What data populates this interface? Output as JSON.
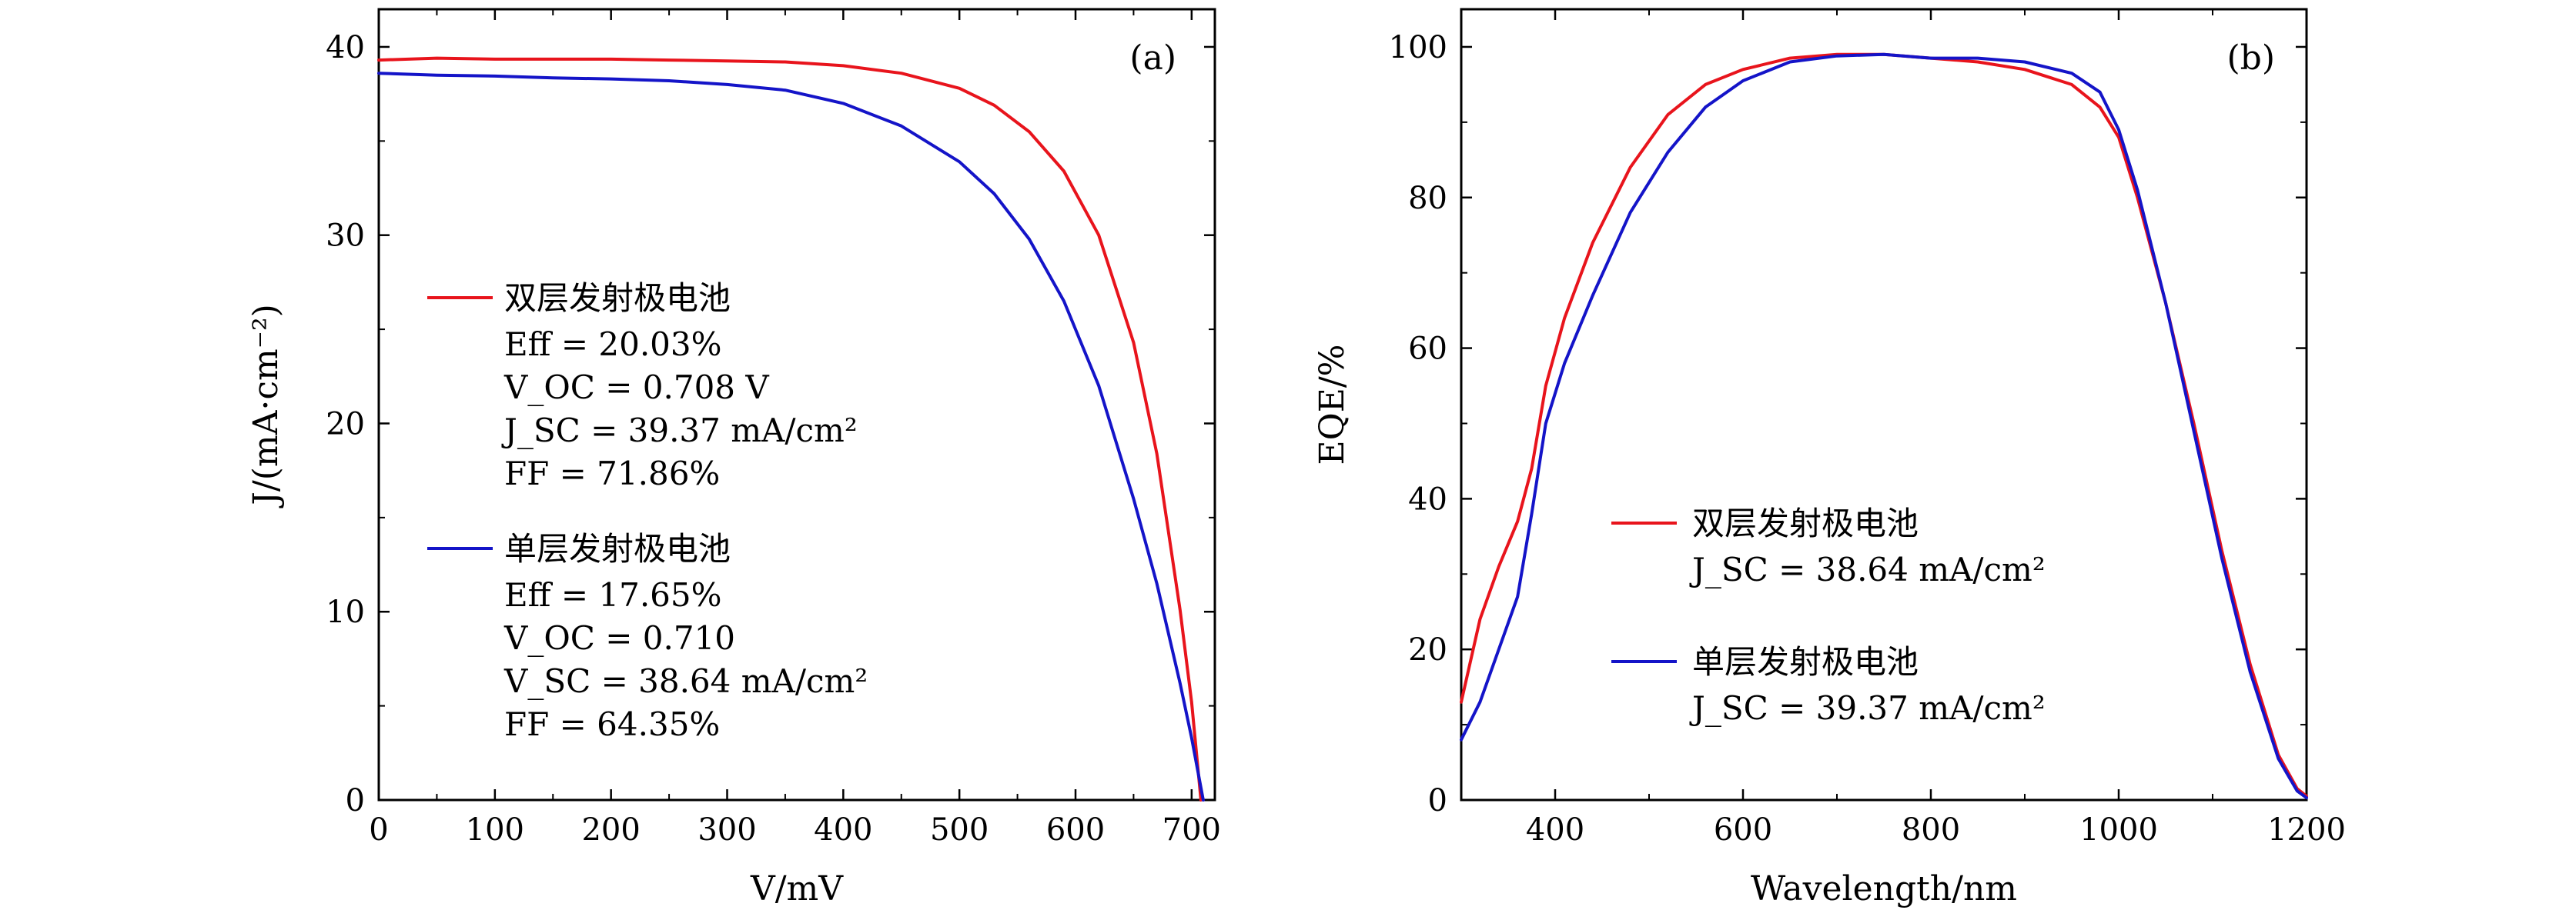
{
  "chart_data": [
    {
      "type": "line",
      "panel_label": "(a)",
      "xlabel": "V/mV",
      "ylabel": "J/(mA·cm⁻²)",
      "xlim": [
        0,
        720
      ],
      "ylim": [
        0,
        42
      ],
      "xticks": [
        0,
        100,
        200,
        300,
        400,
        500,
        600,
        700
      ],
      "yticks": [
        0,
        10,
        20,
        30,
        40
      ],
      "grid": false,
      "legend_position": "center-left",
      "series": [
        {
          "name": "双层发射极电池",
          "color": "#e8141c",
          "legend_lines": [
            "Eff = 20.03%",
            "V_OC = 0.708 V",
            "J_SC = 39.37 mA/cm²",
            "FF = 71.86%"
          ],
          "x": [
            0,
            50,
            100,
            150,
            200,
            250,
            300,
            350,
            400,
            450,
            500,
            530,
            560,
            590,
            620,
            650,
            670,
            690,
            700,
            708
          ],
          "y": [
            39.3,
            39.4,
            39.35,
            39.35,
            39.35,
            39.3,
            39.25,
            39.2,
            39.0,
            38.6,
            37.8,
            36.9,
            35.5,
            33.4,
            30.0,
            24.3,
            18.4,
            10.1,
            5.2,
            0
          ]
        },
        {
          "name": "单层发射极电池",
          "color": "#1414c8",
          "legend_lines": [
            "Eff = 17.65%",
            "V_OC = 0.710",
            "V_SC = 38.64 mA/cm²",
            "FF = 64.35%"
          ],
          "x": [
            0,
            50,
            100,
            150,
            200,
            250,
            300,
            350,
            400,
            450,
            500,
            530,
            560,
            590,
            620,
            650,
            670,
            690,
            700,
            710
          ],
          "y": [
            38.6,
            38.5,
            38.45,
            38.35,
            38.3,
            38.2,
            38.0,
            37.7,
            37.0,
            35.8,
            33.9,
            32.2,
            29.8,
            26.5,
            22.0,
            16.0,
            11.5,
            6.2,
            3.3,
            0
          ]
        }
      ]
    },
    {
      "type": "line",
      "panel_label": "(b)",
      "xlabel": "Wavelength/nm",
      "ylabel": "EQE/%",
      "xlim": [
        300,
        1200
      ],
      "ylim": [
        0,
        105
      ],
      "xticks": [
        400,
        600,
        800,
        1000,
        1200
      ],
      "yticks": [
        0,
        20,
        40,
        60,
        80,
        100
      ],
      "grid": false,
      "legend_position": "center-right",
      "series": [
        {
          "name": "双层发射极电池",
          "color": "#e8141c",
          "legend_lines": [
            "J_SC = 38.64 mA/cm²"
          ],
          "x": [
            300,
            320,
            340,
            360,
            375,
            390,
            410,
            440,
            480,
            520,
            560,
            600,
            650,
            700,
            750,
            800,
            850,
            900,
            950,
            980,
            1000,
            1020,
            1050,
            1080,
            1110,
            1140,
            1170,
            1190,
            1200
          ],
          "y": [
            13,
            24,
            31,
            37,
            44,
            55,
            64,
            74,
            84,
            91,
            95,
            97,
            98.5,
            99,
            99,
            98.5,
            98,
            97,
            95,
            92,
            88,
            80,
            66,
            50,
            33,
            18,
            6,
            1.5,
            0.5
          ]
        },
        {
          "name": "单层发射极电池",
          "color": "#1414c8",
          "legend_lines": [
            "J_SC = 39.37 mA/cm²"
          ],
          "x": [
            300,
            320,
            340,
            360,
            375,
            390,
            410,
            440,
            480,
            520,
            560,
            600,
            650,
            700,
            750,
            800,
            850,
            900,
            950,
            980,
            1000,
            1020,
            1050,
            1080,
            1110,
            1140,
            1170,
            1190,
            1200
          ],
          "y": [
            8,
            13,
            20,
            27,
            38,
            50,
            58,
            67,
            78,
            86,
            92,
            95.5,
            98,
            98.8,
            99,
            98.5,
            98.5,
            98,
            96.5,
            94,
            89,
            81,
            66,
            49,
            32,
            17,
            5.5,
            1.2,
            0.3
          ]
        }
      ]
    }
  ]
}
